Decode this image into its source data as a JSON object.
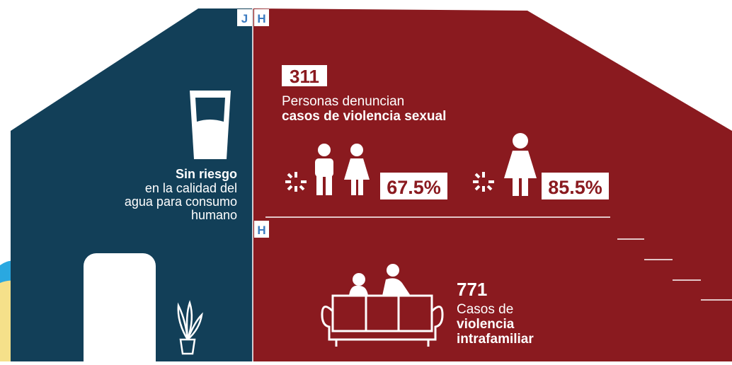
{
  "left_panel": {
    "tag": "J",
    "heading": "Sin riesgo",
    "lines": [
      "en la calidad del",
      "agua para consumo",
      "humano"
    ]
  },
  "sexual_violence": {
    "tag": "H",
    "count": "311",
    "label": "Personas denuncian",
    "label_bold": "casos de violencia sexual",
    "children_percent": "67.5%",
    "women_percent": "85.5%"
  },
  "family_violence": {
    "tag": "H",
    "count": "771",
    "label": "Casos de",
    "label_bold": [
      "violencia",
      "intrafamiliar"
    ]
  }
}
